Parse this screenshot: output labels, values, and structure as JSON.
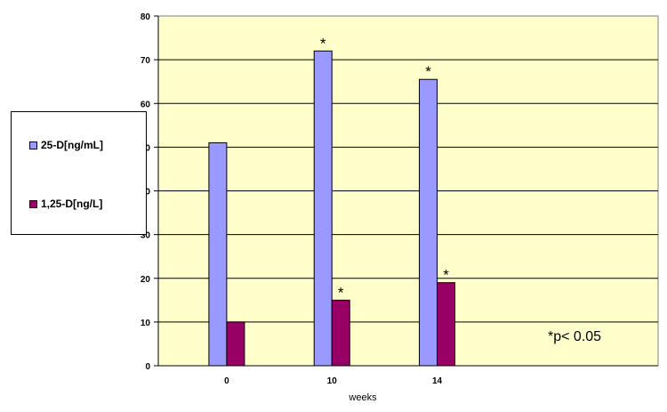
{
  "chart_data": {
    "type": "bar",
    "categories": [
      "0",
      "10",
      "14"
    ],
    "series": [
      {
        "name": "25-D[ng/mL]",
        "values": [
          51,
          72,
          65.5
        ],
        "color": "#9999ff",
        "annotations": [
          "",
          "*",
          "*"
        ]
      },
      {
        "name": "1,25-D[ng/L]",
        "values": [
          10,
          15,
          19
        ],
        "color": "#990066",
        "annotations": [
          "",
          "*",
          "*"
        ]
      }
    ],
    "xlabel": "weeks",
    "ylabel": "",
    "ylim": [
      0,
      80
    ],
    "yticks": [
      "0",
      "10",
      "20",
      "30",
      "40",
      "50",
      "60",
      "70",
      "80"
    ],
    "grid": true,
    "plot_background": "#ffffcc",
    "legend": "left"
  },
  "note": "*p< 0.05"
}
